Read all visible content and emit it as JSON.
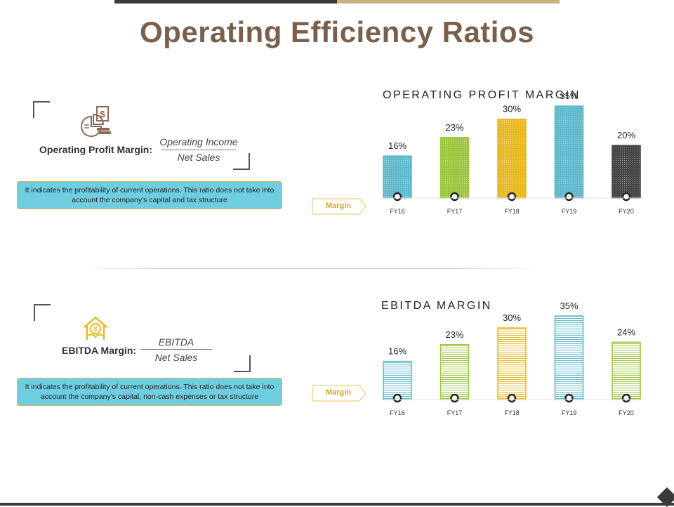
{
  "page": {
    "title": "Operating Efficiency Ratios"
  },
  "sections": [
    {
      "label": "Operating Profit Margin:",
      "numerator": "Operating Income",
      "denominator": "Net Sales",
      "description": "It indicates the profitability of current operations. This ratio does not take into account the company's capital and tax structure",
      "tag": "Margin",
      "icon": "pie-chart-money-icon"
    },
    {
      "label": "EBITDA Margin:",
      "numerator": "EBITDA",
      "denominator": "Net Sales",
      "description": "It indicates the profitability of current operations. This ratio does not take into account the company's capital, non-cash expenses or tax structure",
      "tag": "Margin",
      "icon": "money-hand-house-icon"
    }
  ],
  "colors": {
    "title": "#7a5f4c",
    "info_box": "#6fcde0",
    "accent_gold": "#d6a622",
    "bar_blue": "#5fb8cc",
    "bar_green": "#9cc43c",
    "bar_yellow": "#e8b820",
    "bar_dark": "#444444"
  },
  "chart_data": [
    {
      "type": "bar",
      "title": "OPERATING PROFIT MARGIN",
      "categories": [
        "FY16",
        "FY17",
        "FY18",
        "FY19",
        "FY20"
      ],
      "values": [
        16,
        23,
        30,
        35,
        20
      ],
      "value_labels": [
        "16%",
        "23%",
        "30%",
        "35%",
        "20%"
      ],
      "colors": [
        "#5fb8cc",
        "#9cc43c",
        "#e8b820",
        "#5fb8cc",
        "#444444"
      ],
      "pattern": "dotted",
      "ylim": [
        0,
        35
      ]
    },
    {
      "type": "bar",
      "title": "EBITDA MARGIN",
      "categories": [
        "FY16",
        "FY17",
        "FY18",
        "FY19",
        "FY20"
      ],
      "values": [
        16,
        23,
        30,
        35,
        24
      ],
      "value_labels": [
        "16%",
        "23%",
        "30%",
        "35%",
        "24%"
      ],
      "colors": [
        "#5fb8cc",
        "#9cc43c",
        "#e8b820",
        "#5fb8cc",
        "#9cc43c"
      ],
      "pattern": "striped",
      "ylim": [
        0,
        35
      ]
    }
  ]
}
